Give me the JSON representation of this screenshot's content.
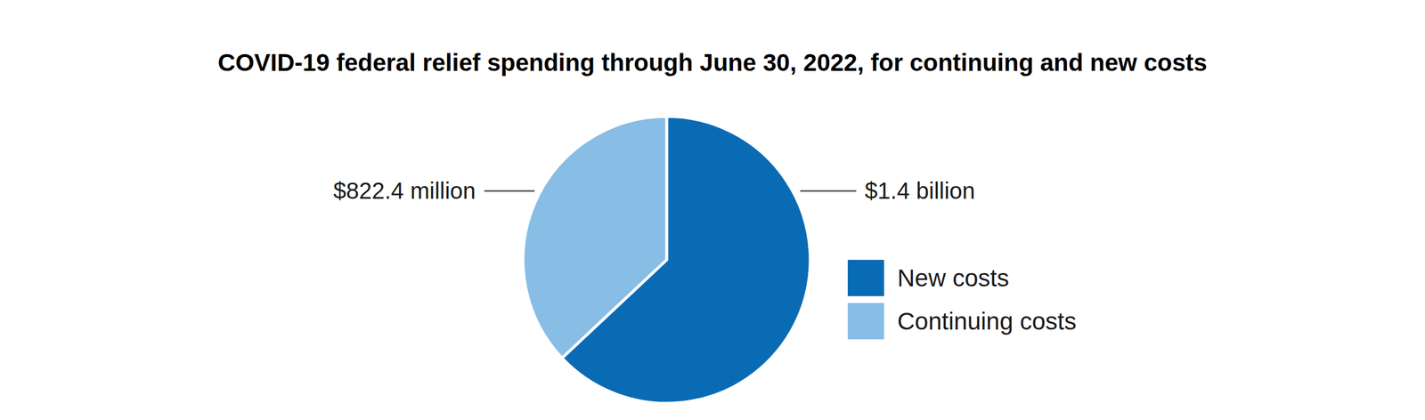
{
  "chart_data": {
    "type": "pie",
    "title": "COVID-19 federal relief spending through June 30, 2022, for continuing and new costs",
    "categories": [
      "New costs",
      "Continuing costs"
    ],
    "values": [
      1400,
      822.4
    ],
    "value_labels": [
      "$1.4 billion",
      "$822.4 million"
    ],
    "colors": [
      "#0a6bb5",
      "#88bde6"
    ],
    "data_labels": true,
    "legend": "right"
  }
}
